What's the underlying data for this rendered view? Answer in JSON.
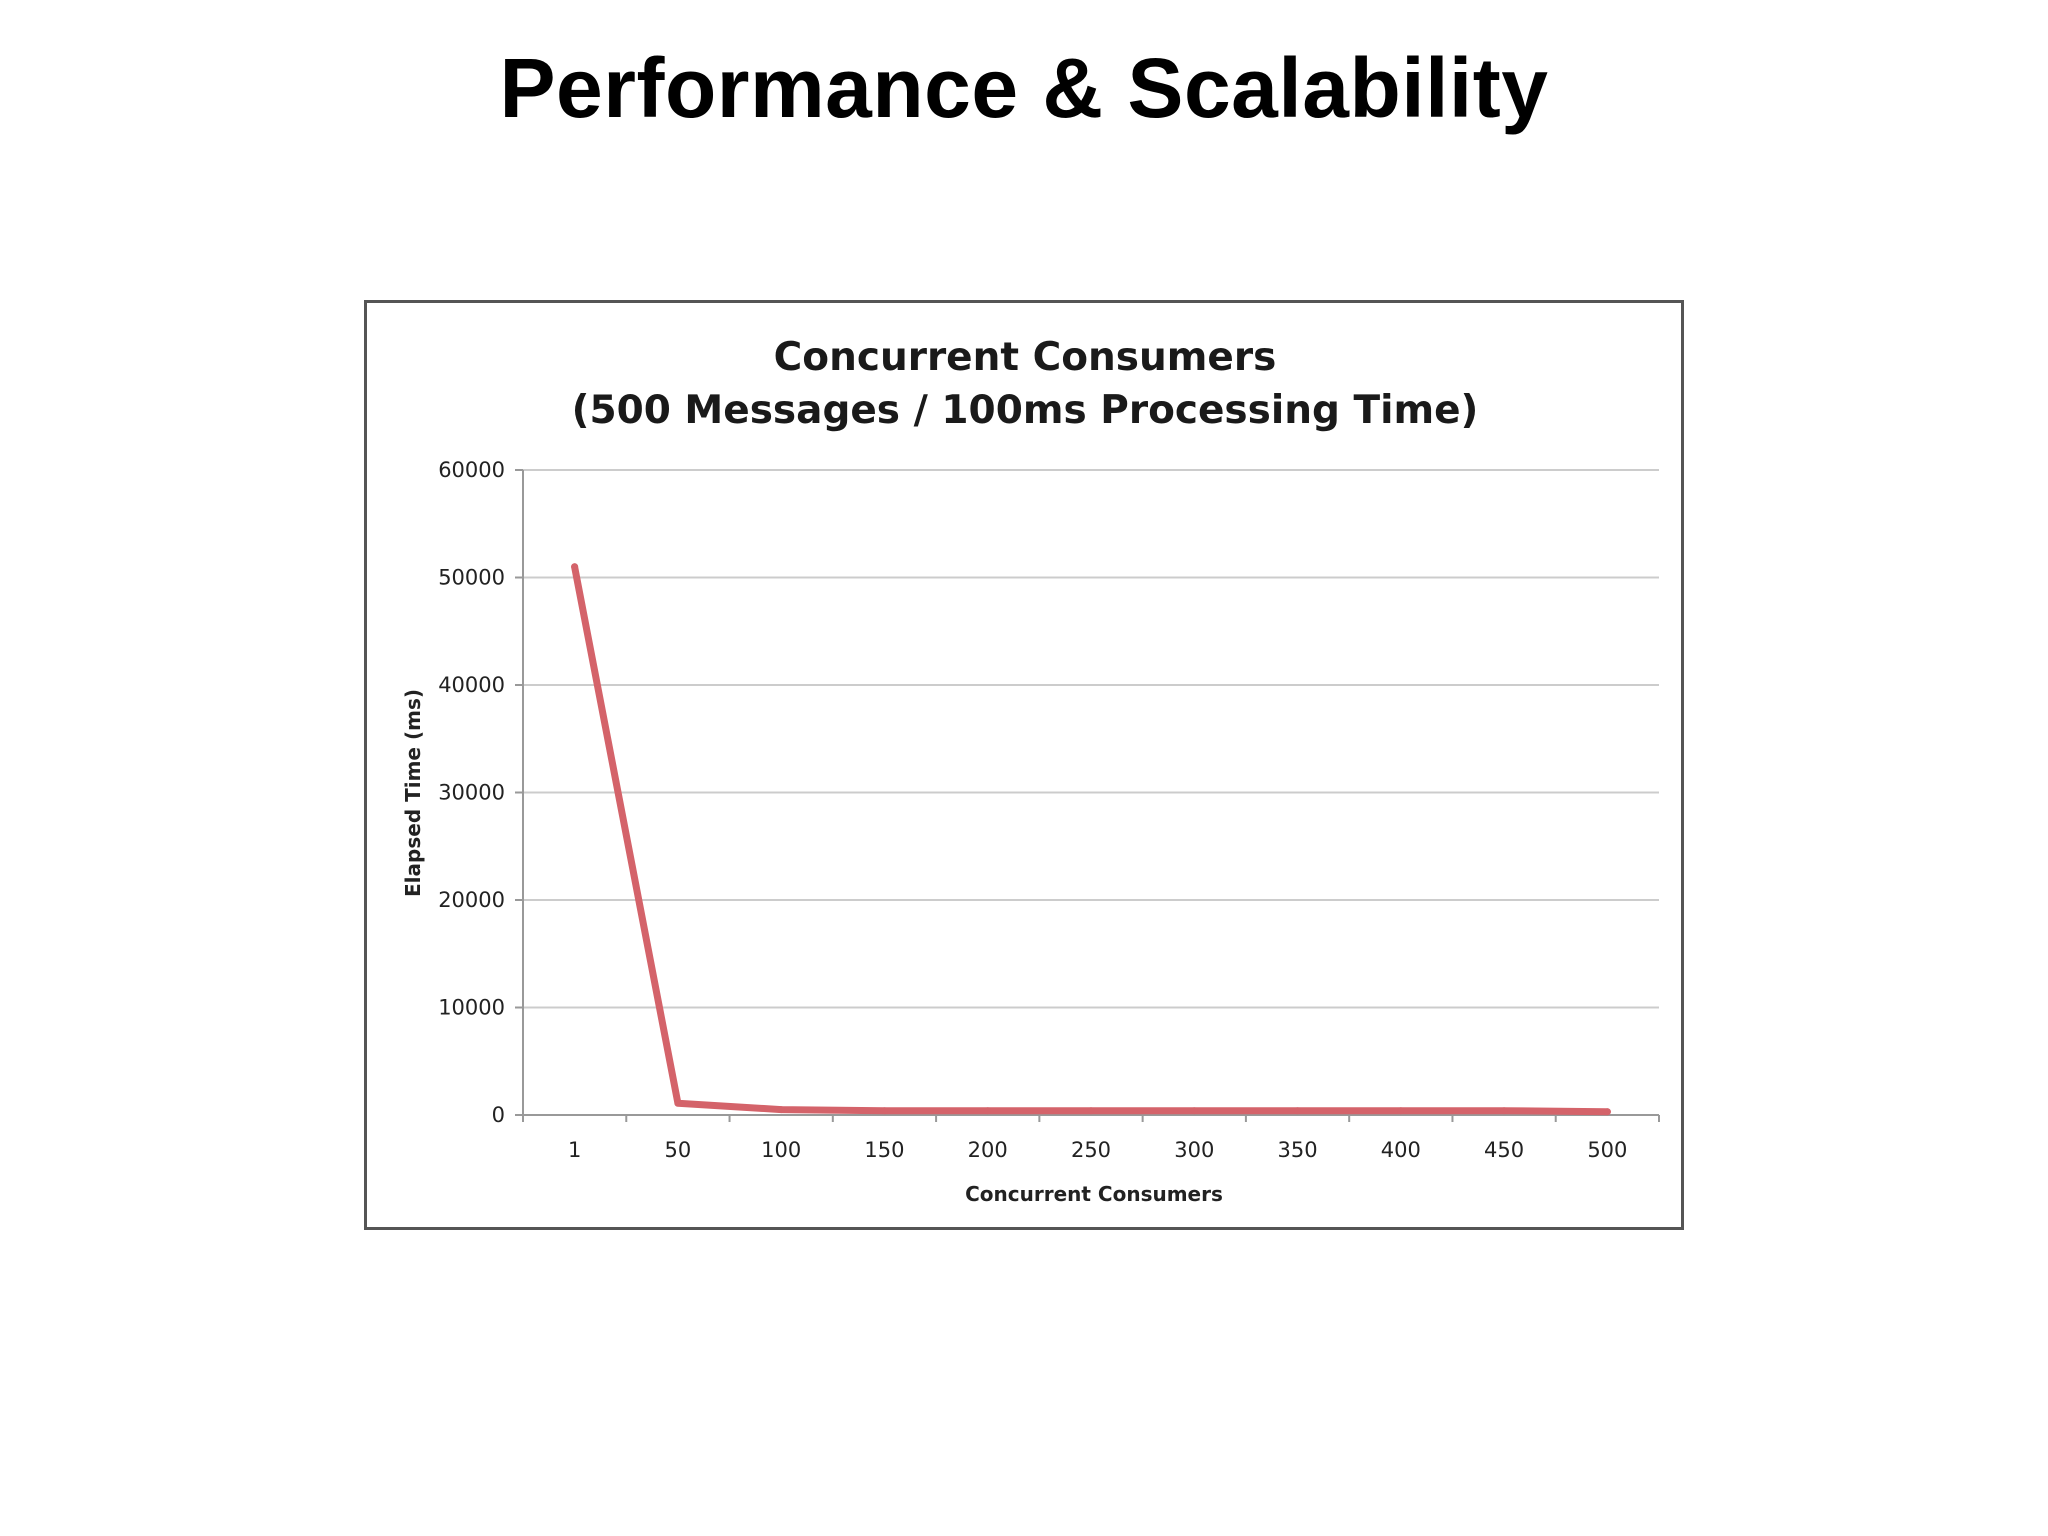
{
  "slide": {
    "title": "Performance & Scalability"
  },
  "colors": {
    "series_line": "#d4636a",
    "gridline": "#cccccc",
    "axis": "#999999",
    "frame": "#555555"
  },
  "chart_data": {
    "type": "line",
    "title": "Concurrent Consumers",
    "subtitle": "(500 Messages / 100ms Processing Time)",
    "xlabel": "Concurrent Consumers",
    "ylabel": "Elapsed Time (ms)",
    "categories": [
      "1",
      "50",
      "100",
      "150",
      "200",
      "250",
      "300",
      "350",
      "400",
      "450",
      "500"
    ],
    "y_ticks": [
      "0",
      "10000",
      "20000",
      "30000",
      "40000",
      "50000",
      "60000"
    ],
    "ylim": [
      0,
      60000
    ],
    "grid": true,
    "legend": "none",
    "series": [
      {
        "values": [
          51000,
          1100,
          500,
          400,
          400,
          400,
          400,
          400,
          400,
          400,
          300
        ]
      }
    ]
  }
}
